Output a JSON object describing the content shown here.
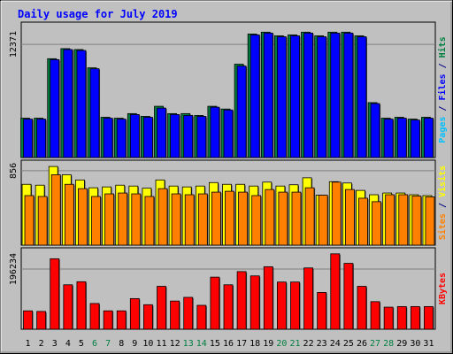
{
  "chart_data": {
    "type": "bar",
    "title": "Daily usage for July 2019",
    "categories": [
      "1",
      "2",
      "3",
      "4",
      "5",
      "6",
      "7",
      "8",
      "9",
      "10",
      "11",
      "12",
      "13",
      "14",
      "15",
      "16",
      "17",
      "18",
      "19",
      "20",
      "21",
      "22",
      "23",
      "24",
      "25",
      "26",
      "27",
      "28",
      "29",
      "30",
      "31"
    ],
    "weekend_days": [
      "6",
      "7",
      "13",
      "14",
      "20",
      "21",
      "27",
      "28"
    ],
    "panels": [
      {
        "axis_max_label": "12371",
        "axis_label_parts": [
          {
            "text": "Pages",
            "color": "#00c0ff"
          },
          {
            "text": " / ",
            "color": "#000080"
          },
          {
            "text": "Files",
            "color": "#0000ff"
          },
          {
            "text": " / ",
            "color": "#000080"
          },
          {
            "text": "Hits",
            "color": "#008040"
          }
        ],
        "series": [
          {
            "name": "Hits",
            "color": "#008040",
            "values": [
              4300,
              4300,
              10800,
              11900,
              11800,
              9800,
              4400,
              4300,
              4800,
              4500,
              5600,
              4800,
              4800,
              4600,
              5600,
              5300,
              10200,
              13500,
              13700,
              13300,
              13400,
              13700,
              13300,
              13700,
              13700,
              13300,
              6000,
              4300,
              4400,
              4200,
              4400
            ]
          },
          {
            "name": "Files",
            "color": "#0000ff",
            "values": [
              4200,
              4200,
              10700,
              11800,
              11700,
              9700,
              4300,
              4200,
              4700,
              4400,
              5400,
              4700,
              4600,
              4500,
              5500,
              5200,
              10000,
              13400,
              13600,
              13200,
              13300,
              13600,
              13200,
              13600,
              13600,
              13200,
              5900,
              4200,
              4300,
              4100,
              4300
            ]
          },
          {
            "name": "Pages",
            "color": "#00c0ff",
            "values": [
              0,
              0,
              0,
              0,
              0,
              0,
              0,
              0,
              0,
              0,
              0,
              0,
              0,
              0,
              0,
              0,
              0,
              0,
              0,
              0,
              0,
              0,
              0,
              0,
              0,
              0,
              0,
              0,
              0,
              0,
              0
            ]
          }
        ]
      },
      {
        "axis_max_label": "856",
        "axis_label_parts": [
          {
            "text": "Sites",
            "color": "#ff8000"
          },
          {
            "text": " / ",
            "color": "#000080"
          },
          {
            "text": "Visits",
            "color": "#ffff00"
          }
        ],
        "series": [
          {
            "name": "Visits",
            "color": "#ffff00",
            "values": [
              700,
              690,
              905,
              810,
              750,
              660,
              670,
              690,
              680,
              655,
              750,
              680,
              670,
              680,
              720,
              700,
              700,
              680,
              725,
              680,
              695,
              775,
              575,
              730,
              715,
              630,
              580,
              600,
              600,
              580,
              570
            ]
          },
          {
            "name": "Sites",
            "color": "#ff8000",
            "values": [
              570,
              560,
              810,
              700,
              650,
              560,
              590,
              600,
              590,
              560,
              650,
              590,
              580,
              590,
              610,
              620,
              610,
              570,
              640,
              610,
              610,
              660,
              575,
              725,
              640,
              540,
              500,
              580,
              580,
              565,
              555
            ]
          }
        ]
      },
      {
        "axis_max_label": "196234",
        "axis_label_parts": [
          {
            "text": "KBytes",
            "color": "#ff0000"
          }
        ],
        "series": [
          {
            "name": "KBytes",
            "color": "#ff0000",
            "values": [
              60000,
              58000,
              230000,
              145000,
              155000,
              84000,
              60000,
              60000,
              100000,
              80000,
              140000,
              92000,
              104000,
              78000,
              170000,
              145000,
              188000,
              174000,
              204000,
              154000,
              154000,
              200000,
              120000,
              246000,
              215000,
              140000,
              90000,
              72000,
              74000,
              74000,
              74000
            ]
          }
        ]
      }
    ]
  }
}
